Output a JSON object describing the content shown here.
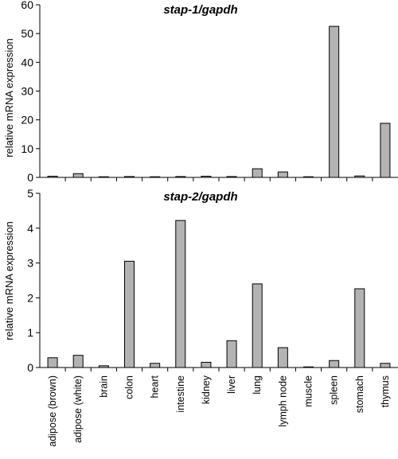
{
  "chart_data": [
    {
      "type": "bar",
      "title": "stap-1/gapdh",
      "xlabel": "",
      "ylabel": "relative mRNA expression",
      "ylim": [
        0,
        60
      ],
      "yticks": [
        0,
        10,
        20,
        30,
        40,
        50,
        60
      ],
      "show_category_labels": false,
      "grid": false,
      "bar_color": "#b3b3b3",
      "categories": [
        "adipose (brown)",
        "adipose (white)",
        "brain",
        "colon",
        "heart",
        "intestine",
        "kidney",
        "liver",
        "lung",
        "lymph node",
        "muscle",
        "spleen",
        "stomach",
        "thymus"
      ],
      "values": [
        0.4,
        1.3,
        0.05,
        0.3,
        0.1,
        0.3,
        0.4,
        0.3,
        3.0,
        1.9,
        0.05,
        52.5,
        0.5,
        18.8
      ]
    },
    {
      "type": "bar",
      "title": "stap-2/gapdh",
      "xlabel": "",
      "ylabel": "relative mRNA expression",
      "ylim": [
        0,
        5
      ],
      "yticks": [
        0,
        1,
        2,
        3,
        4,
        5
      ],
      "show_category_labels": true,
      "grid": false,
      "bar_color": "#b3b3b3",
      "categories": [
        "adipose (brown)",
        "adipose (white)",
        "brain",
        "colon",
        "heart",
        "intestine",
        "kidney",
        "liver",
        "lung",
        "lymph node",
        "muscle",
        "spleen",
        "stomach",
        "thymus"
      ],
      "values": [
        0.28,
        0.35,
        0.05,
        3.05,
        0.12,
        4.22,
        0.15,
        0.77,
        2.4,
        0.57,
        0.01,
        0.2,
        2.26,
        0.12
      ]
    }
  ]
}
